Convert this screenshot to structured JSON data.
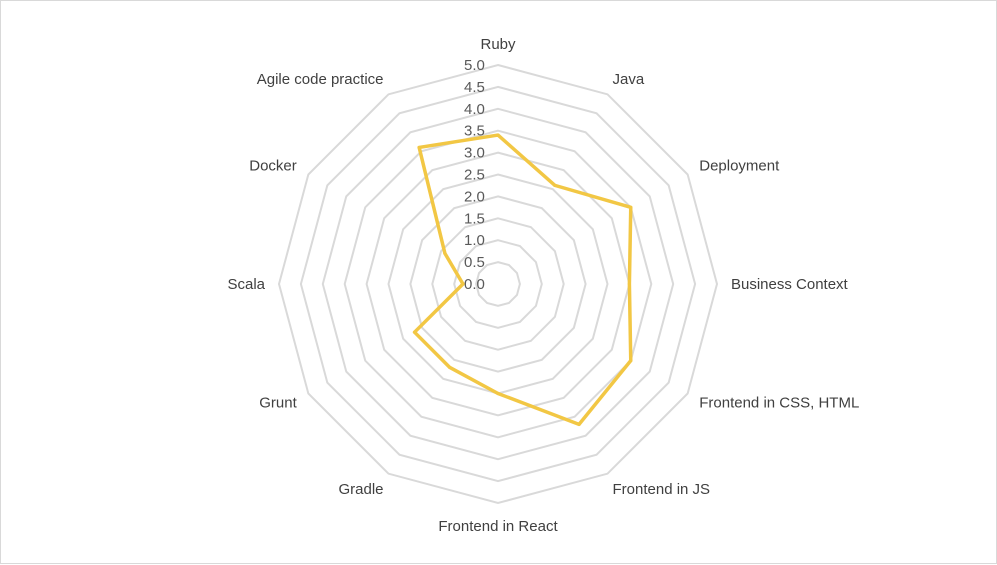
{
  "chart_data": {
    "type": "radar",
    "title": "",
    "categories": [
      "Ruby",
      "Java",
      "Deployment",
      "Business Context",
      "Frontend in CSS, HTML",
      "Frontend in JS",
      "Frontend in React",
      "Gradle",
      "Grunt",
      "Scala",
      "Docker",
      "Agile code practice"
    ],
    "series": [
      {
        "values": [
          3.4,
          2.6,
          3.5,
          3.0,
          3.5,
          3.7,
          2.5,
          2.2,
          2.2,
          0.8,
          1.4,
          3.6
        ],
        "color": "#f2c744"
      }
    ],
    "rlim": [
      0,
      5
    ],
    "rticks": [
      "0.0",
      "0.5",
      "1.0",
      "1.5",
      "2.0",
      "2.5",
      "3.0",
      "3.5",
      "4.0",
      "4.5",
      "5.0"
    ],
    "grid": true,
    "legend": "none",
    "grid_color": "#d9d9d9"
  }
}
